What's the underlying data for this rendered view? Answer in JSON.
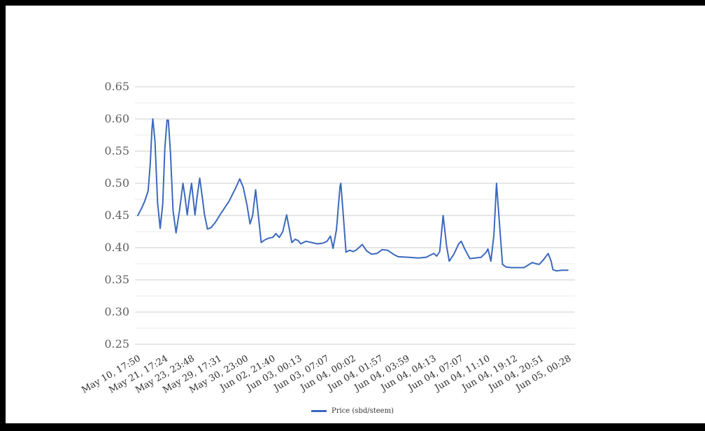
{
  "chart_data": {
    "type": "line",
    "title": "",
    "legend": {
      "label": "Price (sbd/steem)",
      "position": "bottom-center"
    },
    "grid": {
      "major_color": "#cccccc",
      "minor_color": "#ebebeb",
      "minor_gridlines": true
    },
    "y_axis": {
      "min": 0.25,
      "max": 0.65,
      "major_step": 0.05,
      "tick_labels": [
        "0.65",
        "0.60",
        "0.55",
        "0.50",
        "0.45",
        "0.40",
        "0.35",
        "0.30",
        "0.25"
      ]
    },
    "x_axis": {
      "label_rotation_deg": -30,
      "tick_labels": [
        "May 10, 17:50",
        "May 21, 17:24",
        "May 23, 23:48",
        "May 29, 17:31",
        "May 30, 23:00",
        "Jun 02, 21:40",
        "Jun 03, 00:13",
        "Jun 03, 07:07",
        "Jun 04, 00:02",
        "Jun 04, 01:57",
        "Jun 04, 03:59",
        "Jun 04, 04:13",
        "Jun 04, 07:07",
        "Jun 04, 11:10",
        "Jun 04, 19:12",
        "Jun 04, 20:51",
        "Jun 05, 00:28"
      ]
    },
    "series": [
      {
        "name": "Price (sbd/steem)",
        "color": "#3c69be",
        "x_unit": "normalized 0-1 across time axis",
        "points": [
          [
            0.0,
            0.45
          ],
          [
            0.008,
            0.46
          ],
          [
            0.016,
            0.472
          ],
          [
            0.024,
            0.488
          ],
          [
            0.029,
            0.53
          ],
          [
            0.033,
            0.585
          ],
          [
            0.035,
            0.6
          ],
          [
            0.04,
            0.565
          ],
          [
            0.046,
            0.47
          ],
          [
            0.052,
            0.43
          ],
          [
            0.058,
            0.468
          ],
          [
            0.063,
            0.555
          ],
          [
            0.068,
            0.598
          ],
          [
            0.071,
            0.598
          ],
          [
            0.076,
            0.548
          ],
          [
            0.082,
            0.458
          ],
          [
            0.089,
            0.423
          ],
          [
            0.097,
            0.458
          ],
          [
            0.105,
            0.5
          ],
          [
            0.11,
            0.478
          ],
          [
            0.115,
            0.451
          ],
          [
            0.12,
            0.478
          ],
          [
            0.125,
            0.5
          ],
          [
            0.129,
            0.476
          ],
          [
            0.133,
            0.451
          ],
          [
            0.138,
            0.48
          ],
          [
            0.144,
            0.508
          ],
          [
            0.15,
            0.478
          ],
          [
            0.155,
            0.452
          ],
          [
            0.162,
            0.429
          ],
          [
            0.17,
            0.431
          ],
          [
            0.181,
            0.44
          ],
          [
            0.195,
            0.455
          ],
          [
            0.212,
            0.472
          ],
          [
            0.227,
            0.492
          ],
          [
            0.237,
            0.507
          ],
          [
            0.245,
            0.494
          ],
          [
            0.254,
            0.466
          ],
          [
            0.261,
            0.437
          ],
          [
            0.267,
            0.45
          ],
          [
            0.274,
            0.49
          ],
          [
            0.28,
            0.452
          ],
          [
            0.287,
            0.408
          ],
          [
            0.295,
            0.412
          ],
          [
            0.305,
            0.415
          ],
          [
            0.314,
            0.416
          ],
          [
            0.321,
            0.422
          ],
          [
            0.329,
            0.416
          ],
          [
            0.337,
            0.425
          ],
          [
            0.346,
            0.451
          ],
          [
            0.352,
            0.43
          ],
          [
            0.358,
            0.408
          ],
          [
            0.366,
            0.413
          ],
          [
            0.373,
            0.411
          ],
          [
            0.379,
            0.406
          ],
          [
            0.391,
            0.41
          ],
          [
            0.404,
            0.408
          ],
          [
            0.417,
            0.406
          ],
          [
            0.43,
            0.407
          ],
          [
            0.44,
            0.41
          ],
          [
            0.448,
            0.418
          ],
          [
            0.454,
            0.399
          ],
          [
            0.462,
            0.428
          ],
          [
            0.47,
            0.495
          ],
          [
            0.472,
            0.5
          ],
          [
            0.478,
            0.448
          ],
          [
            0.484,
            0.393
          ],
          [
            0.492,
            0.396
          ],
          [
            0.501,
            0.394
          ],
          [
            0.509,
            0.397
          ],
          [
            0.522,
            0.405
          ],
          [
            0.532,
            0.395
          ],
          [
            0.543,
            0.39
          ],
          [
            0.556,
            0.391
          ],
          [
            0.568,
            0.397
          ],
          [
            0.581,
            0.396
          ],
          [
            0.594,
            0.39
          ],
          [
            0.605,
            0.386
          ],
          [
            0.63,
            0.385
          ],
          [
            0.652,
            0.384
          ],
          [
            0.67,
            0.385
          ],
          [
            0.682,
            0.389
          ],
          [
            0.688,
            0.391
          ],
          [
            0.695,
            0.387
          ],
          [
            0.702,
            0.394
          ],
          [
            0.71,
            0.45
          ],
          [
            0.718,
            0.402
          ],
          [
            0.724,
            0.379
          ],
          [
            0.735,
            0.39
          ],
          [
            0.746,
            0.406
          ],
          [
            0.752,
            0.41
          ],
          [
            0.76,
            0.398
          ],
          [
            0.772,
            0.383
          ],
          [
            0.784,
            0.384
          ],
          [
            0.798,
            0.385
          ],
          [
            0.81,
            0.393
          ],
          [
            0.814,
            0.398
          ],
          [
            0.821,
            0.379
          ],
          [
            0.828,
            0.42
          ],
          [
            0.834,
            0.5
          ],
          [
            0.84,
            0.445
          ],
          [
            0.848,
            0.374
          ],
          [
            0.856,
            0.37
          ],
          [
            0.869,
            0.369
          ],
          [
            0.882,
            0.369
          ],
          [
            0.898,
            0.369
          ],
          [
            0.91,
            0.374
          ],
          [
            0.917,
            0.377
          ],
          [
            0.926,
            0.375
          ],
          [
            0.933,
            0.374
          ],
          [
            0.943,
            0.381
          ],
          [
            0.954,
            0.391
          ],
          [
            0.961,
            0.379
          ],
          [
            0.965,
            0.366
          ],
          [
            0.973,
            0.364
          ],
          [
            0.986,
            0.365
          ],
          [
            1.0,
            0.365
          ]
        ]
      }
    ]
  },
  "colors": {
    "frame_border": "#000000",
    "canvas_background": "#ffffff",
    "y_label_text": "#616161",
    "x_label_text": "#2f2f2f",
    "legend_text": "#333333"
  }
}
